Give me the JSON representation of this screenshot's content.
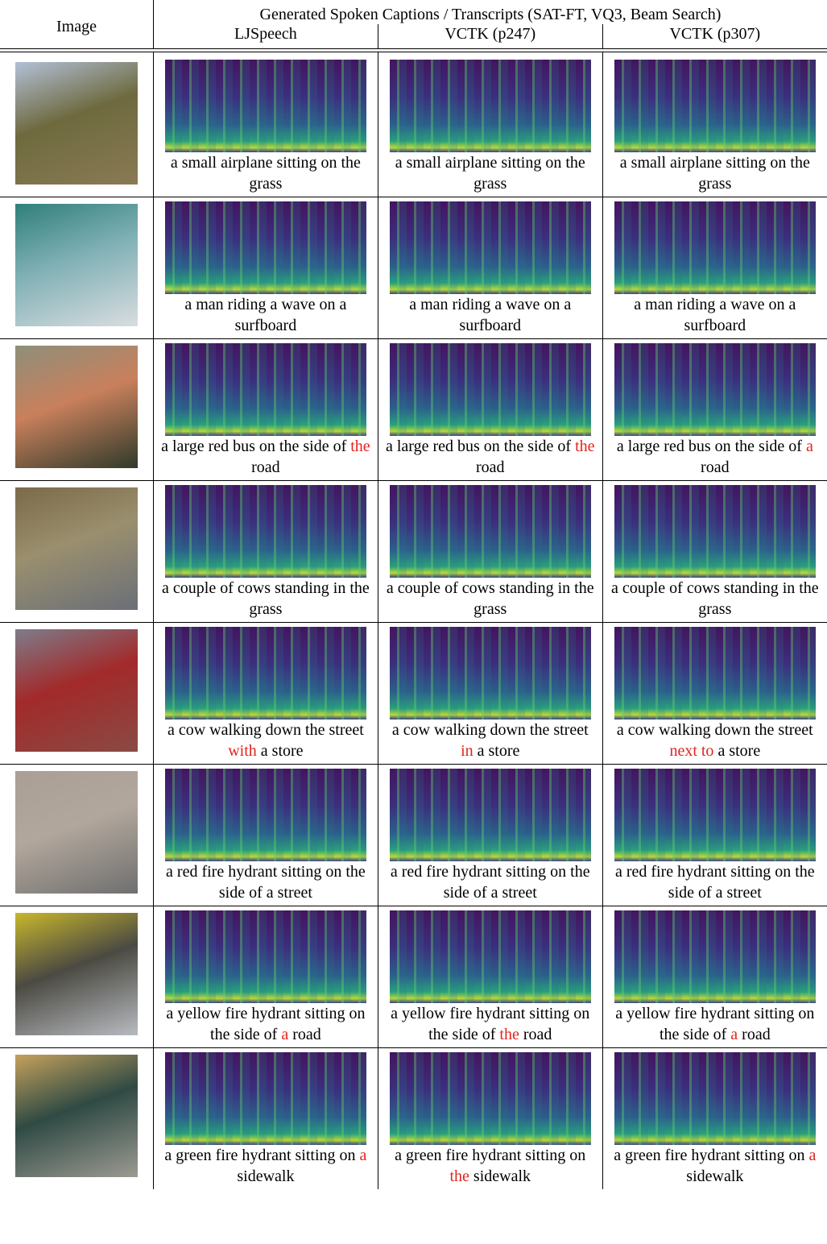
{
  "header": {
    "image": "Image",
    "title": "Generated Spoken Captions / Transcripts (SAT-FT, VQ3, Beam Search)",
    "columns": [
      "LJSpeech",
      "VCTK (p247)",
      "VCTK (p307)"
    ]
  },
  "highlight_color": "#e3231c",
  "rows": [
    {
      "captions": [
        [
          "a small airplane sitting on the grass"
        ],
        [
          "a small airplane sitting on the grass"
        ],
        [
          "a small airplane sitting on the grass"
        ]
      ]
    },
    {
      "captions": [
        [
          "a man riding a wave on a surfboard"
        ],
        [
          "a man riding a wave on a surfboard"
        ],
        [
          "a man riding a wave on a surfboard"
        ]
      ]
    },
    {
      "captions": [
        [
          "a large red bus on the side of ",
          {
            "text": "the",
            "highlight": true
          },
          " road"
        ],
        [
          "a large red bus on the side of ",
          {
            "text": "the",
            "highlight": true
          },
          " road"
        ],
        [
          "a large red bus on the side of ",
          {
            "text": "a",
            "highlight": true
          },
          " road"
        ]
      ]
    },
    {
      "captions": [
        [
          "a couple of cows standing in the grass"
        ],
        [
          "a couple of cows standing in the grass"
        ],
        [
          "a couple of cows standing in the grass"
        ]
      ]
    },
    {
      "captions": [
        [
          "a cow walking down the street ",
          {
            "text": "with",
            "highlight": true
          },
          " a store"
        ],
        [
          "a cow walking down the street ",
          {
            "text": "in",
            "highlight": true
          },
          " a store"
        ],
        [
          "a cow walking down the street ",
          {
            "text": "next to",
            "highlight": true
          },
          " a store"
        ]
      ]
    },
    {
      "captions": [
        [
          "a red fire hydrant sitting on the side of a street"
        ],
        [
          "a red fire hydrant sitting on the side of a street"
        ],
        [
          "a red fire hydrant sitting on the side of a street"
        ]
      ]
    },
    {
      "captions": [
        [
          "a yellow fire hydrant sitting on the side of ",
          {
            "text": "a",
            "highlight": true
          },
          " road"
        ],
        [
          "a yellow fire hydrant sitting on the side of ",
          {
            "text": "the",
            "highlight": true
          },
          " road"
        ],
        [
          "a yellow fire hydrant sitting on the side of ",
          {
            "text": "a",
            "highlight": true
          },
          " road"
        ]
      ]
    },
    {
      "captions": [
        [
          "a green fire hydrant sitting on ",
          {
            "text": "a",
            "highlight": true
          },
          " sidewalk"
        ],
        [
          "a green fire hydrant sitting on ",
          {
            "text": "the",
            "highlight": true
          },
          " sidewalk"
        ],
        [
          "a green fire hydrant sitting on ",
          {
            "text": "a",
            "highlight": true
          },
          " sidewalk"
        ]
      ]
    }
  ]
}
